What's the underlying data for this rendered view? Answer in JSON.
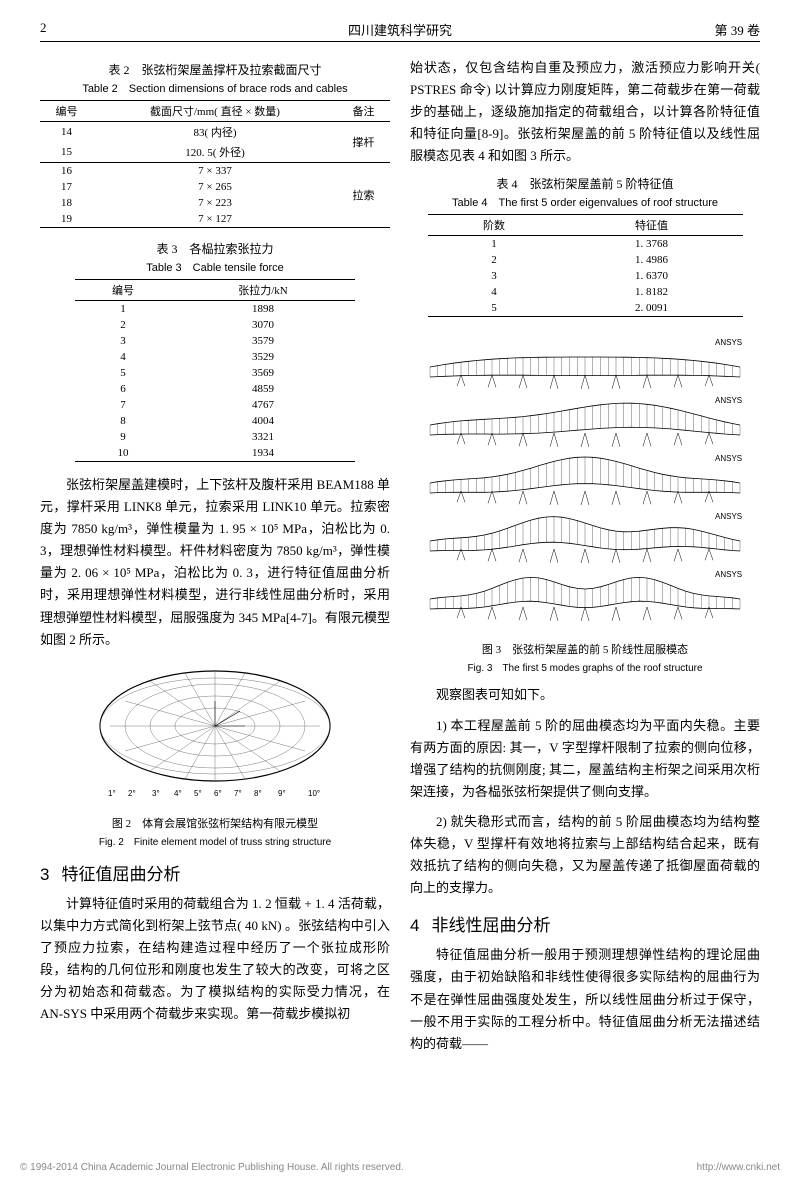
{
  "header": {
    "page_num": "2",
    "journal": "四川建筑科学研究",
    "volume": "第 39 卷"
  },
  "table2": {
    "caption_cn": "表 2　张弦桁架屋盖撑杆及拉索截面尺寸",
    "caption_en": "Table 2　Section dimensions of brace rods and cables",
    "headers": [
      "编号",
      "截面尺寸/mm( 直径 × 数量)",
      "备注"
    ],
    "rows": [
      [
        "14",
        "83( 内径)",
        ""
      ],
      [
        "15",
        "120. 5( 外径)",
        "撑杆"
      ],
      [
        "16",
        "7 × 337",
        ""
      ],
      [
        "17",
        "7 × 265",
        ""
      ],
      [
        "18",
        "7 × 223",
        "拉索"
      ],
      [
        "19",
        "7 × 127",
        ""
      ]
    ]
  },
  "table3": {
    "caption_cn": "表 3　各榀拉索张拉力",
    "caption_en": "Table 3　Cable tensile force",
    "headers": [
      "编号",
      "张拉力/kN"
    ],
    "rows": [
      [
        "1",
        "1898"
      ],
      [
        "2",
        "3070"
      ],
      [
        "3",
        "3579"
      ],
      [
        "4",
        "3529"
      ],
      [
        "5",
        "3569"
      ],
      [
        "6",
        "4859"
      ],
      [
        "7",
        "4767"
      ],
      [
        "8",
        "4004"
      ],
      [
        "9",
        "3321"
      ],
      [
        "10",
        "1934"
      ]
    ]
  },
  "table4": {
    "caption_cn": "表 4　张弦桁架屋盖前 5 阶特征值",
    "caption_en": "Table 4　The first 5 order eigenvalues of roof structure",
    "headers": [
      "阶数",
      "特征值"
    ],
    "rows": [
      [
        "1",
        "1. 3768"
      ],
      [
        "2",
        "1. 4986"
      ],
      [
        "3",
        "1. 6370"
      ],
      [
        "4",
        "1. 8182"
      ],
      [
        "5",
        "2. 0091"
      ]
    ]
  },
  "para_left_1": "张弦桁架屋盖建模时，上下弦杆及腹杆采用 BEAM188 单元，撑杆采用 LINK8 单元，拉索采用 LINK10 单元。拉索密度为 7850 kg/m³，弹性模量为 1. 95 × 10⁵ MPa，泊松比为 0. 3，理想弹性材料模型。杆件材料密度为 7850 kg/m³，弹性模量为 2. 06 × 10⁵ MPa，泊松比为 0. 3，进行特征值屈曲分析时，采用理想弹性材料模型，进行非线性屈曲分析时，采用理想弹塑性材料模型，屈服强度为 345 MPa[4-7]。有限元模型如图 2 所示。",
  "fig2": {
    "caption_cn": "图 2　体育会展馆张弦桁架结构有限元模型",
    "caption_en": "Fig. 2　Finite element model of truss string structure",
    "angle_labels": [
      "1°",
      "2°",
      "3°",
      "4°",
      "5°",
      "6°",
      "7°",
      "8°",
      "9°",
      "10°"
    ]
  },
  "section3": {
    "num": "3",
    "title": "特征值屈曲分析",
    "para": "计算特征值时采用的荷载组合为 1. 2 恒载 + 1. 4 活荷载，以集中力方式简化到桁架上弦节点( 40 kN) 。张弦结构中引入了预应力拉索，在结构建造过程中经历了一个张拉成形阶段，结构的几何位形和刚度也发生了较大的改变，可将之区分为初始态和荷载态。为了模拟结构的实际受力情况，在 AN-SYS 中采用两个荷载步来实现。第一荷载步模拟初"
  },
  "para_right_1": "始状态，仅包含结构自重及预应力，激活预应力影响开关( PSTRES 命令) 以计算应力刚度矩阵，第二荷载步在第一荷载步的基础上，逐级施加指定的荷载组合，以计算各阶特征值和特征向量[8-9]。张弦桁架屋盖的前 5 阶特征值以及线性屈服模态见表 4 和如图 3 所示。",
  "fig3": {
    "caption_cn": "图 3　张弦桁架屋盖的前 5 阶线性屈服模态",
    "caption_en": "Fig. 3　The first 5 modes graphs of the roof structure",
    "ansys_label": "ANSYS"
  },
  "para_right_2": "观察图表可知如下。",
  "para_right_3": "1) 本工程屋盖前 5 阶的屈曲模态均为平面内失稳。主要有两方面的原因: 其一，V 字型撑杆限制了拉索的侧向位移，增强了结构的抗侧刚度; 其二，屋盖结构主桁架之间采用次桁架连接，为各榀张弦桁架提供了侧向支撑。",
  "para_right_4": "2) 就失稳形式而言，结构的前 5 阶屈曲模态均为结构整体失稳，V 型撑杆有效地将拉索与上部结构结合起来，既有效抵抗了结构的侧向失稳，又为屋盖传递了抵御屋面荷载的向上的支撑力。",
  "section4": {
    "num": "4",
    "title": "非线性屈曲分析",
    "para": "特征值屈曲分析一般用于预测理想弹性结构的理论屈曲强度，由于初始缺陷和非线性使得很多实际结构的屈曲行为不是在弹性屈曲强度处发生，所以线性屈曲分析过于保守，一般不用于实际的工程分析中。特征值屈曲分析无法描述结构的荷载——"
  },
  "footer": {
    "copyright": "© 1994-2014 China Academic Journal Electronic Publishing House. All rights reserved.",
    "url": "http://www.cnki.net"
  },
  "colors": {
    "text": "#000000",
    "footer": "#888888",
    "bg": "#ffffff",
    "line": "#000000",
    "grid": "#555555"
  }
}
